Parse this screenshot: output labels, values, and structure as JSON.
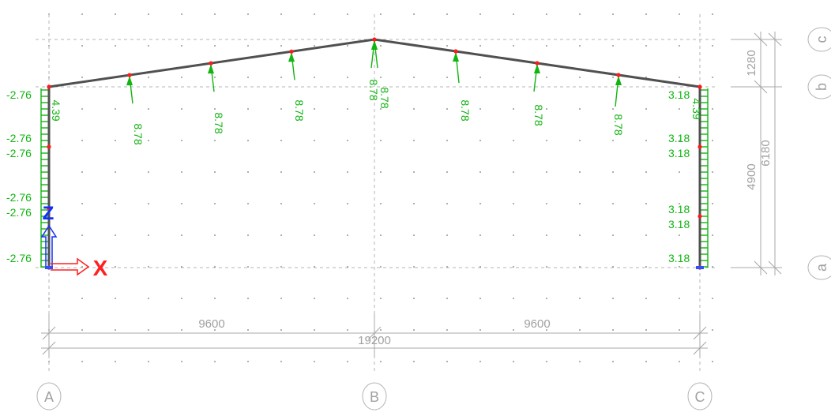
{
  "grid": {
    "columns": [
      {
        "label": "A"
      },
      {
        "label": "B"
      },
      {
        "label": "C"
      }
    ],
    "levels": [
      {
        "label": "a"
      },
      {
        "label": "b"
      },
      {
        "label": "c"
      }
    ]
  },
  "dimensions": {
    "horizontal": [
      {
        "text": "9600"
      },
      {
        "text": "9600"
      },
      {
        "text": "19200"
      }
    ],
    "vertical": [
      {
        "text": "1280"
      },
      {
        "text": "4900"
      },
      {
        "text": "6180"
      }
    ]
  },
  "loads": {
    "roof": [
      "8.78",
      "8.78",
      "8.78",
      "8.78",
      "8.78",
      "8.78",
      "8.78",
      "8.78"
    ],
    "left_column_text": "4.39",
    "right_column_text": "4.39",
    "left_side": [
      "-2.76",
      "-2.76",
      "-2.76",
      "-2.76",
      "-2.76",
      "-2.76"
    ],
    "right_side": [
      "3.18",
      "3.18",
      "3.18",
      "3.18",
      "3.18",
      "3.18"
    ]
  },
  "axes": {
    "x_label": "X",
    "z_label": "Z",
    "x_color": "#ff2020",
    "z_color": "#1030ff"
  },
  "colors": {
    "load": "#12b412",
    "frame": "#505050",
    "node": "#ff1a1a",
    "grid": "#b4b4b4",
    "dim": "#a0a0a0"
  }
}
